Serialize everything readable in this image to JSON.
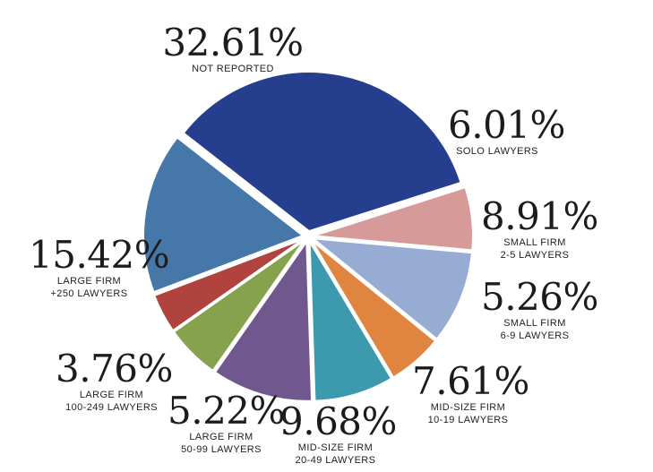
{
  "chart_data": {
    "type": "pie",
    "title": "",
    "slices": [
      {
        "label": "NOT REPORTED",
        "lines": [
          "NOT REPORTED"
        ],
        "value": 32.61,
        "display": "32.61%",
        "color": "#253f8e"
      },
      {
        "label": "SOLO LAWYERS",
        "lines": [
          "SOLO LAWYERS"
        ],
        "value": 6.01,
        "display": "6.01%",
        "color": "#d69a99"
      },
      {
        "label": "SMALL FIRM 2-5 LAWYERS",
        "lines": [
          "SMALL FIRM",
          "2-5 LAWYERS"
        ],
        "value": 8.91,
        "display": "8.91%",
        "color": "#97acd3"
      },
      {
        "label": "SMALL FIRM 6-9 LAWYERS",
        "lines": [
          "SMALL FIRM",
          "6-9 LAWYERS"
        ],
        "value": 5.26,
        "display": "5.26%",
        "color": "#e08540"
      },
      {
        "label": "MID-SIZE FIRM 10-19 LAWYERS",
        "lines": [
          "MID-SIZE FIRM",
          "10-19 LAWYERS"
        ],
        "value": 7.61,
        "display": "7.61%",
        "color": "#3d9aae"
      },
      {
        "label": "MID-SIZE FIRM 20-49 LAWYERS",
        "lines": [
          "MID-SIZE FIRM",
          "20-49 LAWYERS"
        ],
        "value": 9.68,
        "display": "9.68%",
        "color": "#70588f"
      },
      {
        "label": "LARGE FIRM 50-99 LAWYERS",
        "lines": [
          "LARGE FIRM",
          "50-99 LAWYERS"
        ],
        "value": 5.22,
        "display": "5.22%",
        "color": "#87a24c"
      },
      {
        "label": "LARGE FIRM 100-249 LAWYERS",
        "lines": [
          "LARGE FIRM",
          "100-249 LAWYERS"
        ],
        "value": 3.76,
        "display": "3.76%",
        "color": "#b0433e"
      },
      {
        "label": "LARGE FIRM +250 LAWYERS",
        "lines": [
          "LARGE FIRM",
          "+250 LAWYERS"
        ],
        "value": 15.42,
        "display": "15.42%",
        "color": "#4577a8"
      }
    ]
  }
}
